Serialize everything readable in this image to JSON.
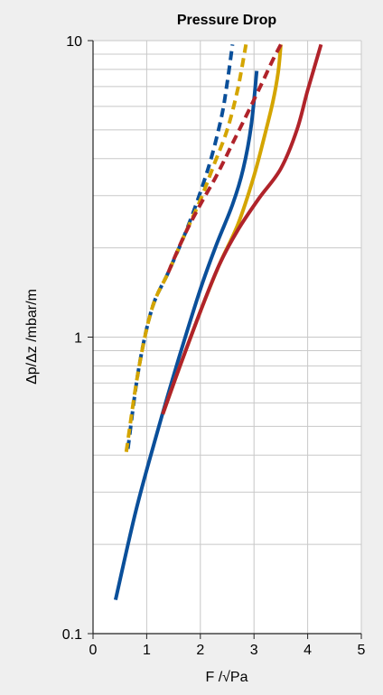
{
  "chart_data": {
    "type": "line",
    "title": "Pressure Drop",
    "xlabel": "F /√Pa",
    "ylabel": "Δp/Δz /mbar/m",
    "x_ticks": [
      "0",
      "1",
      "2",
      "3",
      "4",
      "5"
    ],
    "y_ticks": [
      "0.1",
      "1",
      "10"
    ],
    "xlim": [
      0,
      5
    ],
    "ylim": [
      0.1,
      10
    ],
    "yscale": "log",
    "grid": true,
    "legend": "none",
    "series": [
      {
        "color": "#0a4f9a",
        "dash": "solid",
        "x": [
          0.42,
          0.8,
          1.2,
          1.6,
          2.0,
          2.3,
          2.6,
          2.8,
          2.95,
          3.05
        ],
        "y": [
          0.13,
          0.26,
          0.48,
          0.85,
          1.45,
          2.05,
          2.8,
          3.7,
          5.2,
          7.9
        ]
      },
      {
        "color": "#d4a500",
        "dash": "solid",
        "x": [
          1.3,
          1.6,
          2.0,
          2.35,
          2.7,
          3.0,
          3.2,
          3.35,
          3.45,
          3.5
        ],
        "y": [
          0.55,
          0.78,
          1.22,
          1.75,
          2.4,
          3.5,
          4.8,
          6.2,
          7.8,
          9.7
        ]
      },
      {
        "color": "#b0232a",
        "dash": "solid",
        "x": [
          1.3,
          1.6,
          2.0,
          2.35,
          2.7,
          3.1,
          3.5,
          3.8,
          4.0,
          4.25
        ],
        "y": [
          0.55,
          0.78,
          1.22,
          1.75,
          2.3,
          2.95,
          3.7,
          5.0,
          6.8,
          9.7
        ]
      },
      {
        "color": "#0a4f9a",
        "dash": "dashed",
        "x": [
          0.65,
          0.85,
          1.1,
          1.4,
          1.7,
          1.95,
          2.2,
          2.4,
          2.5,
          2.6
        ],
        "y": [
          0.42,
          0.78,
          1.25,
          1.65,
          2.2,
          2.9,
          4.0,
          5.6,
          7.2,
          9.7
        ]
      },
      {
        "color": "#d4a500",
        "dash": "dashed",
        "x": [
          0.62,
          0.85,
          1.1,
          1.4,
          1.7,
          2.0,
          2.25,
          2.5,
          2.7,
          2.85
        ],
        "y": [
          0.41,
          0.78,
          1.25,
          1.65,
          2.2,
          2.9,
          3.8,
          5.0,
          6.9,
          9.7
        ]
      },
      {
        "color": "#b0232a",
        "dash": "dashed",
        "x": [
          1.4,
          1.7,
          2.0,
          2.3,
          2.6,
          2.9,
          3.15,
          3.35,
          3.5
        ],
        "y": [
          1.65,
          2.2,
          2.8,
          3.5,
          4.5,
          5.8,
          7.2,
          8.6,
          9.7
        ]
      }
    ]
  }
}
